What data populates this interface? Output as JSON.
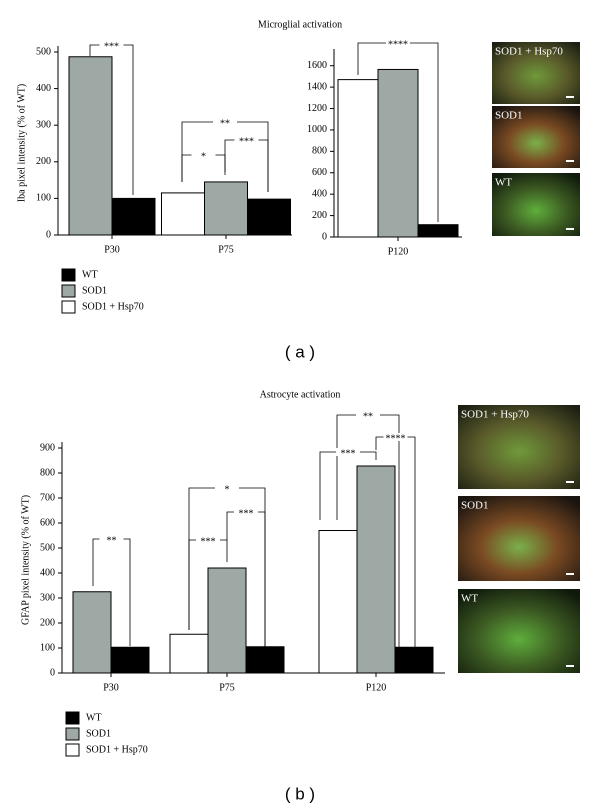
{
  "chart_data": [
    {
      "type": "bar",
      "title": "Microglial activation",
      "y_label": "Iba pixel intensity (% of WT)",
      "categories": [
        "P30",
        "P75"
      ],
      "series": [
        {
          "name": "WT",
          "color": "#000000",
          "values": [
            100,
            98
          ]
        },
        {
          "name": "SOD1",
          "color": "#9ea9a6",
          "values": [
            487,
            145
          ]
        },
        {
          "name": "SOD1 + Hsp70",
          "color": "#ffffff",
          "values": [
            null,
            115
          ]
        }
      ],
      "ylim": [
        0,
        500
      ],
      "yticks": [
        0,
        100,
        200,
        300,
        400,
        500
      ],
      "annotations": [
        "***",
        "**",
        "*",
        "***"
      ]
    },
    {
      "type": "bar",
      "categories": [
        "P120"
      ],
      "series": [
        {
          "color": "#000000",
          "values": [
            115
          ]
        },
        {
          "color": "#9ea9a6",
          "values": [
            1565
          ]
        },
        {
          "color": "#ffffff",
          "values": [
            1470
          ]
        }
      ],
      "ylim": [
        0,
        1700
      ],
      "yticks": [
        0,
        200,
        400,
        600,
        800,
        1000,
        1200,
        1400,
        1600
      ],
      "annotations": [
        "****"
      ]
    },
    {
      "type": "bar",
      "title": "Astrocyte activation",
      "y_label": "GFAP pixel intensity (% of  WT)",
      "categories": [
        "P30",
        "P75",
        "P120"
      ],
      "series": [
        {
          "name": "WT",
          "color": "#000000",
          "values": [
            103,
            105,
            103
          ]
        },
        {
          "name": "SOD1",
          "color": "#9ea9a6",
          "values": [
            325,
            420,
            828
          ]
        },
        {
          "name": "SOD1 + Hsp70",
          "color": "#ffffff",
          "values": [
            null,
            155,
            570
          ]
        }
      ],
      "ylim": [
        0,
        900
      ],
      "yticks": [
        0,
        100,
        200,
        300,
        400,
        500,
        600,
        700,
        800,
        900
      ],
      "annotations": [
        "**",
        "*",
        "***",
        "***",
        "**",
        "***",
        "****"
      ]
    }
  ],
  "figure": {
    "panel_labels": [
      "( a )",
      "( b )"
    ],
    "micrographs": [
      [
        "SOD1 + Hsp70",
        "SOD1",
        "WT"
      ],
      [
        "SOD1 + Hsp70",
        "SOD1",
        "WT"
      ]
    ]
  }
}
